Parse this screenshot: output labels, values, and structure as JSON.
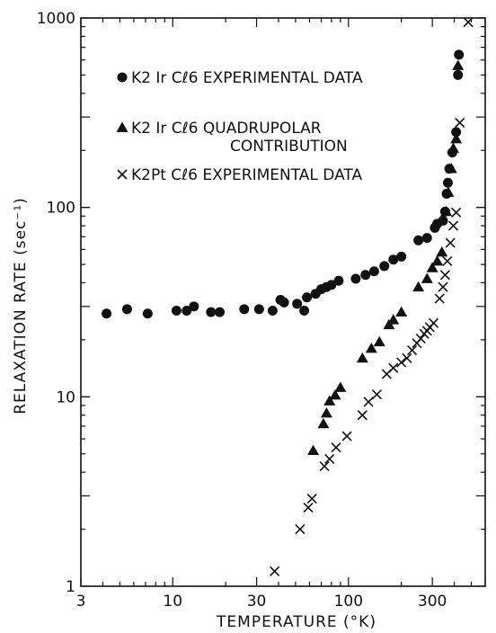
{
  "chart_data": {
    "type": "scatter",
    "title": "",
    "xlabel": "TEMPERATURE (°K)",
    "ylabel": "RELAXATION RATE (sec⁻¹)",
    "xscale": "log",
    "yscale": "log",
    "xlim": [
      3,
      600
    ],
    "ylim": [
      1,
      1000
    ],
    "x_ticks": [
      "3",
      "10",
      "30",
      "100",
      "300"
    ],
    "y_ticks": [
      "1",
      "10",
      "100",
      "1000"
    ],
    "grid": false,
    "legend_position": "top-center",
    "series": [
      {
        "name": "K2IrCl6 EXPERIMENTAL DATA",
        "marker": "circle",
        "points": [
          [
            4.2,
            27.5
          ],
          [
            5.5,
            29
          ],
          [
            7.2,
            27.5
          ],
          [
            10.5,
            28.5
          ],
          [
            12,
            28.5
          ],
          [
            13.2,
            30
          ],
          [
            16.5,
            28
          ],
          [
            18.5,
            28
          ],
          [
            25.5,
            29
          ],
          [
            31,
            29
          ],
          [
            37,
            28.5
          ],
          [
            41,
            32.5
          ],
          [
            43,
            31.5
          ],
          [
            51,
            31
          ],
          [
            56,
            28.5
          ],
          [
            58,
            33.5
          ],
          [
            65,
            35
          ],
          [
            70,
            37
          ],
          [
            75,
            38
          ],
          [
            80,
            39
          ],
          [
            88,
            41
          ],
          [
            110,
            42
          ],
          [
            125,
            44
          ],
          [
            140,
            46
          ],
          [
            160,
            49
          ],
          [
            180,
            53
          ],
          [
            200,
            55
          ],
          [
            250,
            67
          ],
          [
            280,
            69
          ],
          [
            310,
            78
          ],
          [
            320,
            82
          ],
          [
            345,
            85
          ],
          [
            355,
            95
          ],
          [
            362,
            118
          ],
          [
            368,
            135
          ],
          [
            375,
            160
          ],
          [
            390,
            195
          ],
          [
            410,
            250
          ],
          [
            420,
            500
          ],
          [
            425,
            640
          ]
        ]
      },
      {
        "name": "K2IrCl6 QUADRUPOLAR CONTRIBUTION",
        "marker": "triangle",
        "points": [
          [
            63,
            5.2
          ],
          [
            72,
            7.2
          ],
          [
            75,
            8.2
          ],
          [
            78,
            9.5
          ],
          [
            84,
            10.2
          ],
          [
            90,
            11.2
          ],
          [
            120,
            16
          ],
          [
            135,
            18
          ],
          [
            150,
            19.5
          ],
          [
            170,
            24
          ],
          [
            180,
            25.5
          ],
          [
            200,
            28
          ],
          [
            250,
            38
          ],
          [
            280,
            42
          ],
          [
            300,
            48
          ],
          [
            320,
            52
          ],
          [
            340,
            58
          ],
          [
            360,
            95
          ],
          [
            370,
            120
          ],
          [
            385,
            160
          ],
          [
            395,
            205
          ],
          [
            410,
            230
          ],
          [
            420,
            560
          ]
        ]
      },
      {
        "name": "K2PtCl6 EXPERIMENTAL DATA",
        "marker": "x",
        "points": [
          [
            38,
            1.2
          ],
          [
            53,
            2
          ],
          [
            59,
            2.6
          ],
          [
            62,
            2.9
          ],
          [
            73,
            4.3
          ],
          [
            78,
            4.7
          ],
          [
            85,
            5.4
          ],
          [
            98,
            6.2
          ],
          [
            120,
            8
          ],
          [
            130,
            9.4
          ],
          [
            145,
            10.3
          ],
          [
            165,
            13.2
          ],
          [
            180,
            14.2
          ],
          [
            200,
            15.2
          ],
          [
            215,
            16
          ],
          [
            230,
            17.6
          ],
          [
            245,
            19.2
          ],
          [
            258,
            20.3
          ],
          [
            270,
            21.5
          ],
          [
            280,
            22.3
          ],
          [
            290,
            23.3
          ],
          [
            305,
            24.5
          ],
          [
            330,
            33
          ],
          [
            345,
            38
          ],
          [
            355,
            44
          ],
          [
            365,
            52
          ],
          [
            380,
            65
          ],
          [
            395,
            80
          ],
          [
            410,
            94
          ],
          [
            430,
            280
          ],
          [
            480,
            950
          ]
        ]
      }
    ],
    "legend": [
      {
        "marker": "circle",
        "text": "K2 Ir Cℓ6  EXPERIMENTAL  DATA"
      },
      {
        "marker": "triangle",
        "text": "K2 Ir Cℓ6  QUADRUPOLAR"
      },
      {
        "marker": "x",
        "text": "K2Pt Cℓ6  EXPERIMENTAL  DATA"
      }
    ],
    "legend_line2": "CONTRIBUTION"
  }
}
